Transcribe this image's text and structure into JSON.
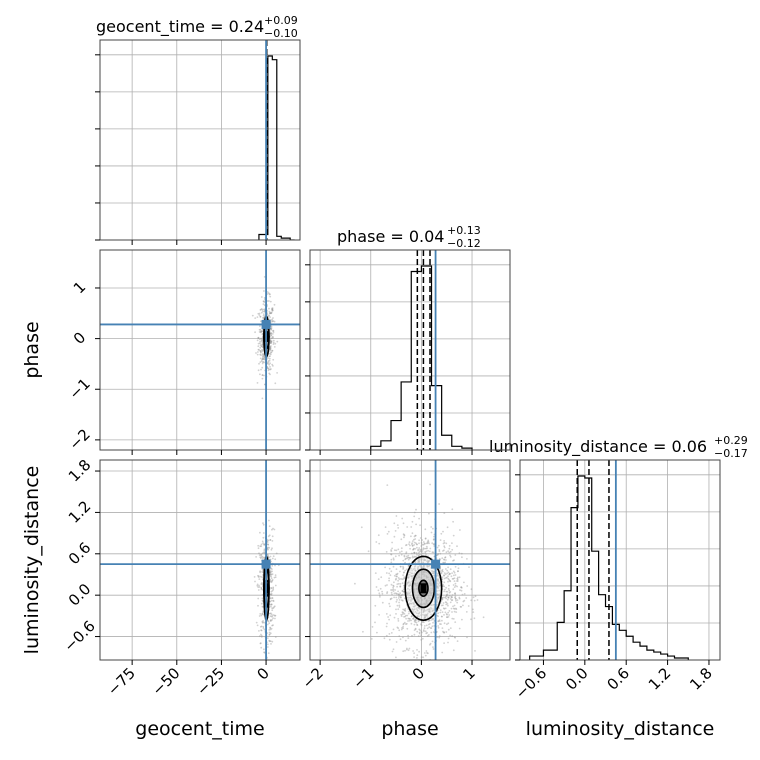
{
  "chart_data": {
    "type": "corner",
    "params": [
      "geocent_time",
      "phase",
      "luminosity_distance"
    ],
    "axis_labels": [
      "geocent_time",
      "phase",
      "luminosity_distance"
    ],
    "truths": {
      "geocent_time": 0.0,
      "phase": 0.28,
      "luminosity_distance": 0.45
    },
    "ranges": {
      "geocent_time": [
        -93,
        19
      ],
      "phase": [
        -2.2,
        1.75
      ],
      "luminosity_distance": [
        -0.94,
        1.96
      ]
    },
    "ticks": {
      "geocent_time": [
        -75,
        -50,
        -25,
        0
      ],
      "phase": [
        -2,
        -1,
        0,
        1
      ],
      "luminosity_distance": [
        -0.6,
        0.0,
        0.6,
        1.2,
        1.8
      ]
    },
    "tick_labels": {
      "geocent_time": [
        "−75",
        "−50",
        "−25",
        "0"
      ],
      "phase": [
        "−2",
        "−1",
        "0",
        "1"
      ],
      "luminosity_distance": [
        "−0.6",
        "0.0",
        "0.6",
        "1.2",
        "1.8"
      ]
    },
    "titles": {
      "geocent_time": {
        "prefix": "geocent_time = 0.24",
        "plus": "+0.09",
        "minus": "−0.10"
      },
      "phase": {
        "prefix": "phase = 0.04",
        "plus": "+0.13",
        "minus": "−0.12"
      },
      "luminosity_distance": {
        "prefix": "luminosity_distance = 0.06",
        "plus": "+0.29",
        "minus": "−0.17"
      }
    },
    "quantiles": {
      "geocent_time": [
        0.14,
        0.24,
        0.33
      ],
      "phase": [
        -0.08,
        0.04,
        0.17
      ],
      "luminosity_distance": [
        -0.11,
        0.06,
        0.35
      ]
    },
    "histograms": {
      "geocent_time": {
        "edges": [
          -4,
          -1.5,
          1.0,
          3.5,
          6.0,
          8.5,
          11.0,
          13.5,
          16.0
        ],
        "counts": [
          0.03,
          0.03,
          1.0,
          0.98,
          0.02,
          0.01,
          0.01,
          0.0
        ]
      },
      "phase": {
        "edges": [
          -1.0,
          -0.8,
          -0.6,
          -0.4,
          -0.2,
          0.0,
          0.2,
          0.4,
          0.6,
          0.8,
          1.0
        ],
        "counts": [
          0.02,
          0.05,
          0.16,
          0.37,
          0.97,
          1.0,
          0.35,
          0.08,
          0.02,
          0.01
        ]
      },
      "luminosity_distance": {
        "edges": [
          -0.8,
          -0.6,
          -0.4,
          -0.3,
          -0.2,
          -0.1,
          0.0,
          0.1,
          0.2,
          0.3,
          0.4,
          0.5,
          0.6,
          0.7,
          0.8,
          0.9,
          1.0,
          1.1,
          1.2,
          1.3,
          1.5
        ],
        "counts": [
          0.02,
          0.05,
          0.19,
          0.35,
          0.77,
          0.93,
          0.92,
          0.55,
          0.33,
          0.27,
          0.18,
          0.15,
          0.12,
          0.09,
          0.07,
          0.05,
          0.04,
          0.03,
          0.02,
          0.01
        ]
      }
    },
    "grid": true,
    "colors": {
      "truth": "#4682b4",
      "hist": "#000000",
      "contour": "#000000",
      "points": "#9a9a9a",
      "grid": "#b0b0b0"
    }
  }
}
